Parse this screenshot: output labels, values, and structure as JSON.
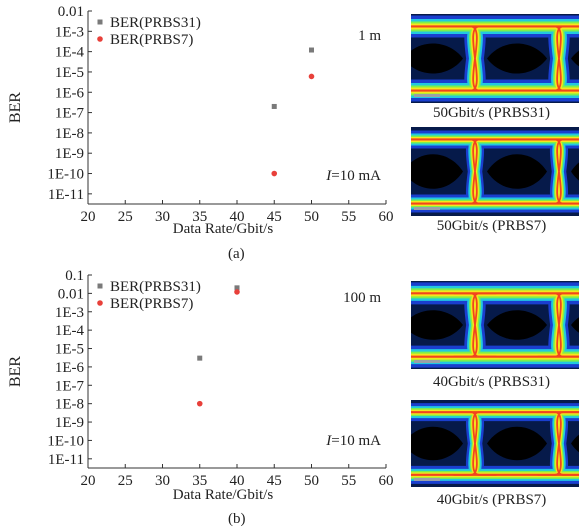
{
  "panels": [
    {
      "id": "a",
      "sublabel": "(a)",
      "eye_captions": [
        "50Gbit/s (PRBS31)",
        "50Gbit/s (PRBS7)"
      ],
      "annotation_distance": "1 m",
      "annotation_current_symbol": "I",
      "annotation_current_rest": "=10 mA"
    },
    {
      "id": "b",
      "sublabel": "(b)",
      "eye_captions": [
        "40Gbit/s (PRBS31)",
        "40Gbit/s (PRBS7)"
      ],
      "annotation_distance": "100 m",
      "annotation_current_symbol": "I",
      "annotation_current_rest": "=10 mA"
    }
  ],
  "colors": {
    "prbs31": "#7a7a7a",
    "prbs7": "#e8403a",
    "axis": "#333333"
  },
  "chart_data": [
    {
      "type": "scatter",
      "xlabel": "Data Rate/Gbit/s",
      "ylabel": "BER",
      "x_ticks": [
        "20",
        "25",
        "30",
        "35",
        "40",
        "45",
        "50",
        "55",
        "60"
      ],
      "y_ticks": [
        "0.01",
        "1E-3",
        "1E-4",
        "1E-5",
        "1E-6",
        "1E-7",
        "1E-8",
        "1E-9",
        "1E-10",
        "1E-11"
      ],
      "xlim": [
        20,
        60
      ],
      "ylim_exp": [
        -11.5,
        -2
      ],
      "yscale": "log",
      "legend_position": "top-left",
      "series": [
        {
          "name": "BER(PRBS31)",
          "color": "#7a7a7a",
          "marker": "square",
          "points": [
            {
              "x": 45,
              "y": 2e-07
            },
            {
              "x": 50,
              "y": 0.00012
            }
          ]
        },
        {
          "name": "BER(PRBS7)",
          "color": "#e8403a",
          "marker": "circle",
          "points": [
            {
              "x": 45,
              "y": 1e-10
            },
            {
              "x": 50,
              "y": 6e-06
            }
          ]
        }
      ]
    },
    {
      "type": "scatter",
      "xlabel": "Data Rate/Gbit/s",
      "ylabel": "BER",
      "x_ticks": [
        "20",
        "25",
        "30",
        "35",
        "40",
        "45",
        "50",
        "55",
        "60"
      ],
      "y_ticks": [
        "0.1",
        "0.01",
        "1E-3",
        "1E-4",
        "1E-5",
        "1E-6",
        "1E-7",
        "1E-8",
        "1E-9",
        "1E-10",
        "1E-11"
      ],
      "xlim": [
        20,
        60
      ],
      "ylim_exp": [
        -11.5,
        -1
      ],
      "yscale": "log",
      "legend_position": "top-left",
      "series": [
        {
          "name": "BER(PRBS31)",
          "color": "#7a7a7a",
          "marker": "square",
          "points": [
            {
              "x": 35,
              "y": 3e-06
            },
            {
              "x": 40,
              "y": 0.02
            }
          ]
        },
        {
          "name": "BER(PRBS7)",
          "color": "#e8403a",
          "marker": "circle",
          "points": [
            {
              "x": 35,
              "y": 1e-08
            },
            {
              "x": 40,
              "y": 0.012
            }
          ]
        }
      ]
    }
  ]
}
